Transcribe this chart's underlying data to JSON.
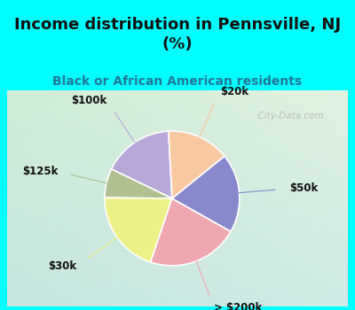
{
  "title": "Income distribution in Pennsville, NJ\n(%)",
  "subtitle": "Black or African American residents",
  "title_fontsize": 13,
  "subtitle_fontsize": 10,
  "slices": [
    {
      "label": "$100k",
      "value": 17,
      "color": "#b8a8d8"
    },
    {
      "label": "$125k",
      "value": 7,
      "color": "#b0c090"
    },
    {
      "label": "$30k",
      "value": 20,
      "color": "#eef088"
    },
    {
      "label": "> $200k",
      "value": 22,
      "color": "#f0a8b0"
    },
    {
      "label": "$50k",
      "value": 19,
      "color": "#8888cc"
    },
    {
      "label": "$20k",
      "value": 15,
      "color": "#f8c8a0"
    }
  ],
  "startangle": 93,
  "bg_top_color": "#00ffff",
  "watermark": "  City-Data.com",
  "label_fontsize": 8.5,
  "chart_bg_colors": [
    "#c0dce0",
    "#cce8cc",
    "#d8f0d8",
    "#e0f0e0"
  ]
}
